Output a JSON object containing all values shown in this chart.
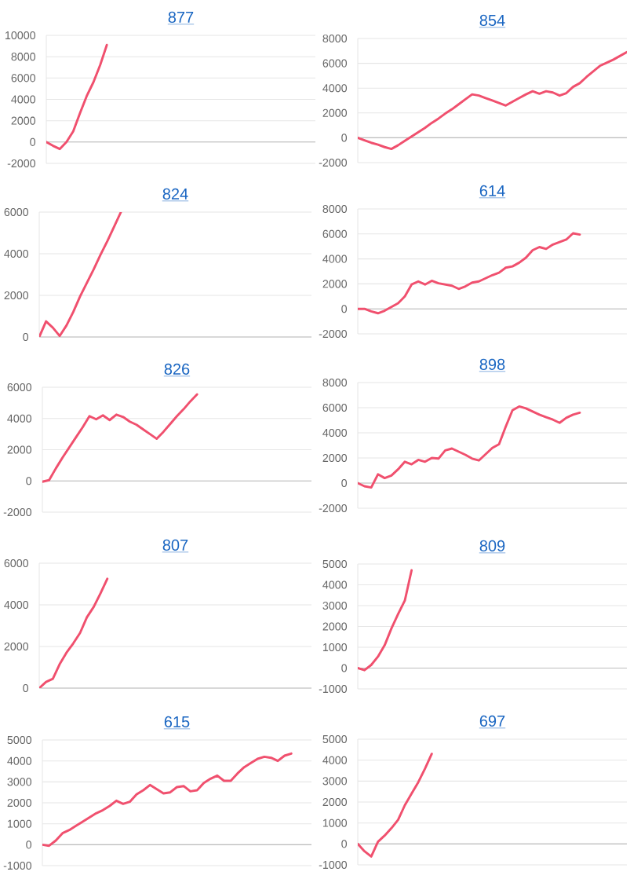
{
  "chart_data": [
    {
      "type": "line",
      "title": "877",
      "categories": [
        null,
        null,
        null,
        null,
        null,
        null,
        null,
        null,
        null,
        null,
        null,
        null,
        null,
        null,
        null,
        null,
        null,
        null,
        null,
        null,
        null,
        null,
        null,
        null,
        null,
        null,
        null,
        null,
        null,
        null,
        null,
        null,
        null,
        null,
        null,
        null,
        null,
        null,
        null,
        null,
        null
      ],
      "values": [
        0,
        -350,
        -650,
        0,
        1000,
        2700,
        4300,
        5600,
        7200,
        9100,
        null,
        null,
        null,
        null,
        null,
        null,
        null,
        null,
        null,
        null,
        null,
        null,
        null,
        null,
        null,
        null,
        null,
        null,
        null,
        null,
        null,
        null,
        null,
        null,
        null,
        null,
        null,
        null,
        null,
        null,
        null
      ],
      "color": "#f0506e",
      "ylim": [
        -2000,
        10000
      ],
      "yticks": [
        -2000,
        0,
        2000,
        4000,
        6000,
        8000,
        10000
      ],
      "grid": "y"
    },
    {
      "type": "line",
      "title": "854",
      "categories": [
        null,
        null,
        null,
        null,
        null,
        null,
        null,
        null,
        null,
        null,
        null,
        null,
        null,
        null,
        null,
        null,
        null,
        null,
        null,
        null,
        null,
        null,
        null,
        null,
        null,
        null,
        null,
        null,
        null,
        null,
        null,
        null,
        null,
        null,
        null,
        null,
        null,
        null,
        null,
        null,
        null
      ],
      "values": [
        0,
        -200,
        -400,
        -550,
        -750,
        -900,
        -600,
        -250,
        100,
        450,
        800,
        1200,
        1550,
        1950,
        2300,
        2700,
        3100,
        3500,
        3400,
        3200,
        3000,
        2800,
        2600,
        2900,
        3200,
        3500,
        3750,
        3550,
        3750,
        3650,
        3400,
        3600,
        4100,
        4400,
        4900,
        5350,
        5800,
        6050,
        6300,
        6600,
        6900
      ],
      "color": "#f0506e",
      "ylim": [
        -2000,
        8000
      ],
      "yticks": [
        -2000,
        0,
        2000,
        4000,
        6000,
        8000
      ],
      "grid": "y"
    },
    {
      "type": "line",
      "title": "824",
      "categories": [
        null,
        null,
        null,
        null,
        null,
        null,
        null,
        null,
        null,
        null,
        null,
        null,
        null,
        null,
        null,
        null,
        null,
        null,
        null,
        null,
        null,
        null,
        null,
        null,
        null,
        null,
        null,
        null,
        null,
        null,
        null,
        null,
        null,
        null,
        null,
        null,
        null,
        null,
        null,
        null,
        null
      ],
      "values": [
        0,
        750,
        450,
        50,
        550,
        1200,
        1950,
        2600,
        3250,
        3950,
        4600,
        5300,
        6000,
        null,
        null,
        null,
        null,
        null,
        null,
        null,
        null,
        null,
        null,
        null,
        null,
        null,
        null,
        null,
        null,
        null,
        null,
        null,
        null,
        null,
        null,
        null,
        null,
        null,
        null,
        null,
        null
      ],
      "color": "#f0506e",
      "ylim": [
        0,
        6000
      ],
      "yticks": [
        0,
        2000,
        4000,
        6000
      ],
      "grid": "y"
    },
    {
      "type": "line",
      "title": "614",
      "categories": [
        null,
        null,
        null,
        null,
        null,
        null,
        null,
        null,
        null,
        null,
        null,
        null,
        null,
        null,
        null,
        null,
        null,
        null,
        null,
        null,
        null,
        null,
        null,
        null,
        null,
        null,
        null,
        null,
        null,
        null,
        null,
        null,
        null,
        null,
        null,
        null,
        null,
        null,
        null,
        null,
        null
      ],
      "values": [
        0,
        0,
        -200,
        -350,
        -150,
        150,
        450,
        1000,
        1950,
        2200,
        1950,
        2250,
        2050,
        1950,
        1850,
        1600,
        1800,
        2100,
        2200,
        2450,
        2700,
        2900,
        3300,
        3400,
        3700,
        4100,
        4700,
        4950,
        4800,
        5150,
        5350,
        5550,
        6050,
        5950,
        null,
        null,
        null,
        null,
        null,
        null,
        null
      ],
      "color": "#f0506e",
      "ylim": [
        -2000,
        8000
      ],
      "yticks": [
        -2000,
        0,
        2000,
        4000,
        6000,
        8000
      ],
      "grid": "y"
    },
    {
      "type": "line",
      "title": "826",
      "categories": [
        null,
        null,
        null,
        null,
        null,
        null,
        null,
        null,
        null,
        null,
        null,
        null,
        null,
        null,
        null,
        null,
        null,
        null,
        null,
        null,
        null,
        null,
        null,
        null,
        null,
        null,
        null,
        null,
        null,
        null,
        null,
        null,
        null,
        null,
        null,
        null,
        null,
        null,
        null,
        null,
        null
      ],
      "values": [
        -50,
        50,
        800,
        1500,
        2150,
        2800,
        3450,
        4150,
        3950,
        4200,
        3900,
        4250,
        4100,
        3800,
        3600,
        3300,
        3000,
        2700,
        3150,
        3650,
        4150,
        4600,
        5100,
        5550,
        null,
        null,
        null,
        null,
        null,
        null,
        null,
        null,
        null,
        null,
        null,
        null,
        null,
        null,
        null,
        null,
        null
      ],
      "color": "#f0506e",
      "ylim": [
        -2000,
        6000
      ],
      "yticks": [
        -2000,
        0,
        2000,
        4000,
        6000
      ],
      "grid": "y"
    },
    {
      "type": "line",
      "title": "898",
      "categories": [
        null,
        null,
        null,
        null,
        null,
        null,
        null,
        null,
        null,
        null,
        null,
        null,
        null,
        null,
        null,
        null,
        null,
        null,
        null,
        null,
        null,
        null,
        null,
        null,
        null,
        null,
        null,
        null,
        null,
        null,
        null,
        null,
        null,
        null,
        null,
        null,
        null,
        null,
        null,
        null,
        null
      ],
      "values": [
        0,
        -250,
        -350,
        700,
        400,
        600,
        1100,
        1700,
        1500,
        1850,
        1700,
        2000,
        1950,
        2600,
        2750,
        2500,
        2250,
        1950,
        1800,
        2300,
        2800,
        3100,
        4500,
        5800,
        6100,
        5950,
        5700,
        5450,
        5250,
        5050,
        4800,
        5200,
        5450,
        5600,
        null,
        null,
        null,
        null,
        null,
        null,
        null
      ],
      "color": "#f0506e",
      "ylim": [
        -2000,
        8000
      ],
      "yticks": [
        -2000,
        0,
        2000,
        4000,
        6000,
        8000
      ],
      "grid": "y"
    },
    {
      "type": "line",
      "title": "807",
      "categories": [
        null,
        null,
        null,
        null,
        null,
        null,
        null,
        null,
        null,
        null,
        null,
        null,
        null,
        null,
        null,
        null,
        null,
        null,
        null,
        null,
        null,
        null,
        null,
        null,
        null,
        null,
        null,
        null,
        null,
        null,
        null,
        null,
        null,
        null,
        null,
        null,
        null,
        null,
        null,
        null,
        null
      ],
      "values": [
        0,
        300,
        450,
        1150,
        1700,
        2150,
        2650,
        3400,
        3900,
        4550,
        5250,
        null,
        null,
        null,
        null,
        null,
        null,
        null,
        null,
        null,
        null,
        null,
        null,
        null,
        null,
        null,
        null,
        null,
        null,
        null,
        null,
        null,
        null,
        null,
        null,
        null,
        null,
        null,
        null,
        null,
        null
      ],
      "color": "#f0506e",
      "ylim": [
        0,
        6000
      ],
      "yticks": [
        0,
        2000,
        4000,
        6000
      ],
      "grid": "y"
    },
    {
      "type": "line",
      "title": "809",
      "categories": [
        null,
        null,
        null,
        null,
        null,
        null,
        null,
        null,
        null,
        null,
        null,
        null,
        null,
        null,
        null,
        null,
        null,
        null,
        null,
        null,
        null,
        null,
        null,
        null,
        null,
        null,
        null,
        null,
        null,
        null,
        null,
        null,
        null,
        null,
        null,
        null,
        null,
        null,
        null,
        null,
        null
      ],
      "values": [
        0,
        -100,
        150,
        550,
        1100,
        1900,
        2600,
        3250,
        4700,
        null,
        null,
        null,
        null,
        null,
        null,
        null,
        null,
        null,
        null,
        null,
        null,
        null,
        null,
        null,
        null,
        null,
        null,
        null,
        null,
        null,
        null,
        null,
        null,
        null,
        null,
        null,
        null,
        null,
        null,
        null,
        null
      ],
      "color": "#f0506e",
      "ylim": [
        -1000,
        5000
      ],
      "yticks": [
        -1000,
        0,
        1000,
        2000,
        3000,
        4000,
        5000
      ],
      "grid": "y"
    },
    {
      "type": "line",
      "title": "615",
      "categories": [
        null,
        null,
        null,
        null,
        null,
        null,
        null,
        null,
        null,
        null,
        null,
        null,
        null,
        null,
        null,
        null,
        null,
        null,
        null,
        null,
        null,
        null,
        null,
        null,
        null,
        null,
        null,
        null,
        null,
        null,
        null,
        null,
        null,
        null,
        null,
        null,
        null,
        null,
        null,
        null,
        null
      ],
      "values": [
        0,
        -50,
        200,
        550,
        700,
        900,
        1100,
        1300,
        1500,
        1650,
        1850,
        2100,
        1950,
        2050,
        2400,
        2600,
        2850,
        2650,
        2450,
        2500,
        2750,
        2800,
        2550,
        2600,
        2950,
        3150,
        3300,
        3050,
        3050,
        3400,
        3700,
        3900,
        4100,
        4200,
        4150,
        4000,
        4250,
        4350,
        null,
        null,
        null
      ],
      "color": "#f0506e",
      "ylim": [
        -1000,
        5000
      ],
      "yticks": [
        -1000,
        0,
        1000,
        2000,
        3000,
        4000,
        5000
      ],
      "grid": "y"
    },
    {
      "type": "line",
      "title": "697",
      "categories": [
        null,
        null,
        null,
        null,
        null,
        null,
        null,
        null,
        null,
        null,
        null,
        null,
        null,
        null,
        null,
        null,
        null,
        null,
        null,
        null,
        null,
        null,
        null,
        null,
        null,
        null,
        null,
        null,
        null,
        null,
        null,
        null,
        null,
        null,
        null,
        null,
        null,
        null,
        null,
        null,
        null
      ],
      "values": [
        0,
        -350,
        -600,
        100,
        400,
        750,
        1150,
        1850,
        2400,
        2950,
        3600,
        4300,
        null,
        null,
        null,
        null,
        null,
        null,
        null,
        null,
        null,
        null,
        null,
        null,
        null,
        null,
        null,
        null,
        null,
        null,
        null,
        null,
        null,
        null,
        null,
        null,
        null,
        null,
        null,
        null,
        null
      ],
      "color": "#f0506e",
      "ylim": [
        -1000,
        5000
      ],
      "yticks": [
        -1000,
        0,
        1000,
        2000,
        3000,
        4000,
        5000
      ],
      "grid": "y"
    }
  ]
}
